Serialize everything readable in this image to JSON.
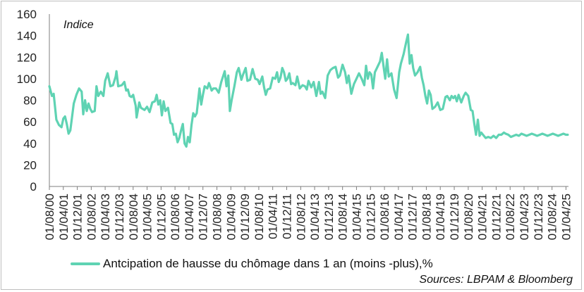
{
  "chart_data": {
    "type": "line",
    "ylabel": "Indice",
    "ylim": [
      0,
      160
    ],
    "yticks": [
      0,
      20,
      40,
      60,
      80,
      100,
      120,
      140,
      160
    ],
    "xlim": [
      "2000-08-01",
      "2025-05-15"
    ],
    "grid": false,
    "legend_position": "bottom-left",
    "x_tick_labels": [
      "01/08/00",
      "01/04/01",
      "01/12/01",
      "01/08/02",
      "01/04/03",
      "01/12/03",
      "01/08/04",
      "01/04/05",
      "01/12/05",
      "01/08/06",
      "01/04/07",
      "01/12/07",
      "01/08/08",
      "01/04/09",
      "01/12/09",
      "01/08/10",
      "01/04/11",
      "01/12/11",
      "01/08/12",
      "01/04/13",
      "01/12/13",
      "01/08/14",
      "01/04/15",
      "01/12/15",
      "01/08/16",
      "01/04/17",
      "01/12/17",
      "01/08/18",
      "01/04/19",
      "01/12/19",
      "01/08/20",
      "01/04/21",
      "01/12/21",
      "01/08/22",
      "01/04/23",
      "01/12/23",
      "01/08/24",
      "01/04/25"
    ],
    "series": [
      {
        "name": "Antcipation de hausse du chômage dans 1 an (moins -plus),%",
        "color": "#5fd3b3",
        "points": [
          [
            "2000-08-01",
            93
          ],
          [
            "2000-09-15",
            84
          ],
          [
            "2000-10-15",
            86
          ],
          [
            "2000-12-01",
            62
          ],
          [
            "2001-01-15",
            57
          ],
          [
            "2001-03-01",
            55
          ],
          [
            "2001-04-01",
            63
          ],
          [
            "2001-05-01",
            65
          ],
          [
            "2001-06-01",
            58
          ],
          [
            "2001-07-01",
            49
          ],
          [
            "2001-08-01",
            52
          ],
          [
            "2001-10-01",
            77
          ],
          [
            "2001-11-15",
            85
          ],
          [
            "2002-01-01",
            91
          ],
          [
            "2002-02-15",
            88
          ],
          [
            "2002-03-15",
            67
          ],
          [
            "2002-04-15",
            80
          ],
          [
            "2002-05-15",
            70
          ],
          [
            "2002-06-15",
            77
          ],
          [
            "2002-07-15",
            72
          ],
          [
            "2002-08-15",
            69
          ],
          [
            "2002-10-01",
            70
          ],
          [
            "2002-11-01",
            93
          ],
          [
            "2002-12-01",
            84
          ],
          [
            "2003-01-15",
            88
          ],
          [
            "2003-03-01",
            84
          ],
          [
            "2003-04-01",
            98
          ],
          [
            "2003-05-15",
            105
          ],
          [
            "2003-07-01",
            93
          ],
          [
            "2003-08-15",
            94
          ],
          [
            "2003-10-01",
            102
          ],
          [
            "2003-10-15",
            107
          ],
          [
            "2003-11-15",
            93
          ],
          [
            "2004-01-15",
            94
          ],
          [
            "2004-03-01",
            97
          ],
          [
            "2004-04-01",
            89
          ],
          [
            "2004-05-01",
            90
          ],
          [
            "2004-06-01",
            84
          ],
          [
            "2004-07-01",
            83
          ],
          [
            "2004-08-01",
            85
          ],
          [
            "2004-09-15",
            75
          ],
          [
            "2004-10-01",
            64
          ],
          [
            "2004-11-15",
            78
          ],
          [
            "2004-12-15",
            73
          ],
          [
            "2005-02-15",
            71
          ],
          [
            "2005-04-01",
            74
          ],
          [
            "2005-05-15",
            69
          ],
          [
            "2005-07-01",
            78
          ],
          [
            "2005-08-15",
            79
          ],
          [
            "2005-09-15",
            85
          ],
          [
            "2005-10-15",
            76
          ],
          [
            "2005-11-15",
            80
          ],
          [
            "2005-12-15",
            66
          ],
          [
            "2006-01-15",
            79
          ],
          [
            "2006-02-15",
            70
          ],
          [
            "2006-04-01",
            73
          ],
          [
            "2006-05-15",
            59
          ],
          [
            "2006-06-15",
            58
          ],
          [
            "2006-07-15",
            48
          ],
          [
            "2006-08-15",
            49
          ],
          [
            "2006-09-15",
            41
          ],
          [
            "2006-10-15",
            45
          ],
          [
            "2006-11-15",
            52
          ],
          [
            "2006-12-15",
            58
          ],
          [
            "2007-01-15",
            40
          ],
          [
            "2007-02-15",
            37
          ],
          [
            "2007-03-15",
            46
          ],
          [
            "2007-04-15",
            41
          ],
          [
            "2007-05-15",
            57
          ],
          [
            "2007-06-15",
            68
          ],
          [
            "2007-07-15",
            65
          ],
          [
            "2007-08-15",
            68
          ],
          [
            "2007-10-01",
            91
          ],
          [
            "2007-11-01",
            76
          ],
          [
            "2007-12-01",
            85
          ],
          [
            "2008-01-01",
            93
          ],
          [
            "2008-02-15",
            91
          ],
          [
            "2008-03-15",
            96
          ],
          [
            "2008-05-01",
            89
          ],
          [
            "2008-06-01",
            91
          ],
          [
            "2008-07-15",
            91
          ],
          [
            "2008-09-01",
            87
          ],
          [
            "2008-10-15",
            97
          ],
          [
            "2008-12-15",
            107
          ],
          [
            "2009-01-15",
            93
          ],
          [
            "2009-02-15",
            103
          ],
          [
            "2009-03-15",
            70
          ],
          [
            "2009-04-15",
            80
          ],
          [
            "2009-06-01",
            93
          ],
          [
            "2009-07-15",
            106
          ],
          [
            "2009-08-15",
            110
          ],
          [
            "2009-10-01",
            99
          ],
          [
            "2009-11-01",
            104
          ],
          [
            "2009-12-15",
            110
          ],
          [
            "2010-01-15",
            98
          ],
          [
            "2010-03-01",
            99
          ],
          [
            "2010-04-15",
            109
          ],
          [
            "2010-06-01",
            100
          ],
          [
            "2010-07-15",
            99
          ],
          [
            "2010-08-15",
            95
          ],
          [
            "2010-10-01",
            102
          ],
          [
            "2010-11-01",
            92
          ],
          [
            "2010-12-01",
            85
          ],
          [
            "2011-01-01",
            90
          ],
          [
            "2011-02-15",
            91
          ],
          [
            "2011-04-01",
            101
          ],
          [
            "2011-05-15",
            100
          ],
          [
            "2011-06-15",
            106
          ],
          [
            "2011-07-15",
            97
          ],
          [
            "2011-08-15",
            101
          ],
          [
            "2011-09-15",
            110
          ],
          [
            "2011-10-15",
            106
          ],
          [
            "2011-11-15",
            98
          ],
          [
            "2011-12-15",
            100
          ],
          [
            "2012-01-15",
            105
          ],
          [
            "2012-02-15",
            95
          ],
          [
            "2012-03-15",
            96
          ],
          [
            "2012-05-01",
            94
          ],
          [
            "2012-06-01",
            102
          ],
          [
            "2012-07-15",
            91
          ],
          [
            "2012-09-01",
            94
          ],
          [
            "2012-10-15",
            93
          ],
          [
            "2012-11-15",
            90
          ],
          [
            "2012-12-15",
            98
          ],
          [
            "2013-02-01",
            92
          ],
          [
            "2013-03-15",
            97
          ],
          [
            "2013-05-01",
            84
          ],
          [
            "2013-06-15",
            97
          ],
          [
            "2013-07-15",
            86
          ],
          [
            "2013-08-15",
            88
          ],
          [
            "2013-10-01",
            82
          ],
          [
            "2013-11-15",
            103
          ],
          [
            "2014-01-01",
            108
          ],
          [
            "2014-02-15",
            110
          ],
          [
            "2014-04-01",
            111
          ],
          [
            "2014-05-15",
            101
          ],
          [
            "2014-06-15",
            103
          ],
          [
            "2014-08-01",
            113
          ],
          [
            "2014-09-15",
            106
          ],
          [
            "2014-10-15",
            96
          ],
          [
            "2014-11-15",
            103
          ],
          [
            "2015-01-01",
            86
          ],
          [
            "2015-02-15",
            95
          ],
          [
            "2015-04-01",
            100
          ],
          [
            "2015-05-15",
            105
          ],
          [
            "2015-07-01",
            100
          ],
          [
            "2015-08-15",
            94
          ],
          [
            "2015-09-15",
            112
          ],
          [
            "2015-10-15",
            100
          ],
          [
            "2015-11-15",
            106
          ],
          [
            "2015-12-15",
            104
          ],
          [
            "2016-01-15",
            91
          ],
          [
            "2016-02-15",
            106
          ],
          [
            "2016-04-01",
            111
          ],
          [
            "2016-05-15",
            116
          ],
          [
            "2016-06-15",
            124
          ],
          [
            "2016-07-15",
            112
          ],
          [
            "2016-08-15",
            100
          ],
          [
            "2016-09-15",
            118
          ],
          [
            "2016-10-15",
            102
          ],
          [
            "2016-12-01",
            105
          ],
          [
            "2017-01-15",
            90
          ],
          [
            "2017-03-01",
            82
          ],
          [
            "2017-04-15",
            106
          ],
          [
            "2017-05-15",
            114
          ],
          [
            "2017-07-01",
            123
          ],
          [
            "2017-08-15",
            134
          ],
          [
            "2017-09-15",
            141
          ],
          [
            "2017-10-15",
            114
          ],
          [
            "2017-11-15",
            122
          ],
          [
            "2017-12-15",
            110
          ],
          [
            "2018-01-15",
            103
          ],
          [
            "2018-03-01",
            106
          ],
          [
            "2018-04-15",
            111
          ],
          [
            "2018-05-15",
            101
          ],
          [
            "2018-06-15",
            94
          ],
          [
            "2018-07-15",
            84
          ],
          [
            "2018-08-15",
            77
          ],
          [
            "2018-09-15",
            89
          ],
          [
            "2018-10-15",
            85
          ],
          [
            "2018-11-15",
            72
          ],
          [
            "2019-01-01",
            74
          ],
          [
            "2019-02-15",
            78
          ],
          [
            "2019-04-01",
            71
          ],
          [
            "2019-05-15",
            72
          ],
          [
            "2019-07-01",
            83
          ],
          [
            "2019-08-01",
            84
          ],
          [
            "2019-09-15",
            80
          ],
          [
            "2019-10-15",
            84
          ],
          [
            "2019-11-15",
            82
          ],
          [
            "2019-12-15",
            84
          ],
          [
            "2020-01-15",
            79
          ],
          [
            "2020-02-15",
            85
          ],
          [
            "2020-04-01",
            78
          ],
          [
            "2020-05-15",
            84
          ],
          [
            "2020-06-15",
            87
          ],
          [
            "2020-08-01",
            84
          ],
          [
            "2020-09-15",
            71
          ],
          [
            "2020-10-15",
            70
          ],
          [
            "2020-11-15",
            58
          ],
          [
            "2020-12-15",
            48
          ],
          [
            "2021-01-15",
            62
          ],
          [
            "2021-02-15",
            47
          ],
          [
            "2021-03-15",
            50
          ],
          [
            "2021-04-15",
            48
          ],
          [
            "2021-06-01",
            45
          ],
          [
            "2021-07-15",
            46
          ],
          [
            "2021-09-01",
            45
          ],
          [
            "2021-10-15",
            47
          ],
          [
            "2021-12-01",
            45
          ],
          [
            "2022-01-15",
            48
          ],
          [
            "2022-03-01",
            48
          ],
          [
            "2022-04-15",
            50
          ],
          [
            "2022-05-15",
            49
          ],
          [
            "2022-07-01",
            48
          ],
          [
            "2022-08-15",
            46
          ],
          [
            "2022-10-01",
            47
          ],
          [
            "2022-11-15",
            48
          ],
          [
            "2023-01-01",
            47
          ],
          [
            "2023-02-15",
            49
          ],
          [
            "2023-04-01",
            48
          ],
          [
            "2023-05-15",
            47
          ],
          [
            "2023-07-01",
            48
          ],
          [
            "2023-08-15",
            49
          ],
          [
            "2023-10-01",
            48
          ],
          [
            "2023-11-15",
            47
          ],
          [
            "2024-01-01",
            48
          ],
          [
            "2024-02-15",
            49
          ],
          [
            "2024-04-01",
            48
          ],
          [
            "2024-05-15",
            47
          ],
          [
            "2024-07-01",
            48
          ],
          [
            "2024-08-15",
            49
          ],
          [
            "2024-10-01",
            48
          ],
          [
            "2024-11-15",
            47
          ],
          [
            "2025-01-01",
            48
          ],
          [
            "2025-02-15",
            49
          ],
          [
            "2025-04-01",
            48
          ],
          [
            "2025-05-01",
            48
          ]
        ]
      }
    ],
    "legend_label": "Antcipation de hausse du chômage dans 1 an (moins -plus),%",
    "source": "Sources: LBPAM & Bloomberg"
  }
}
